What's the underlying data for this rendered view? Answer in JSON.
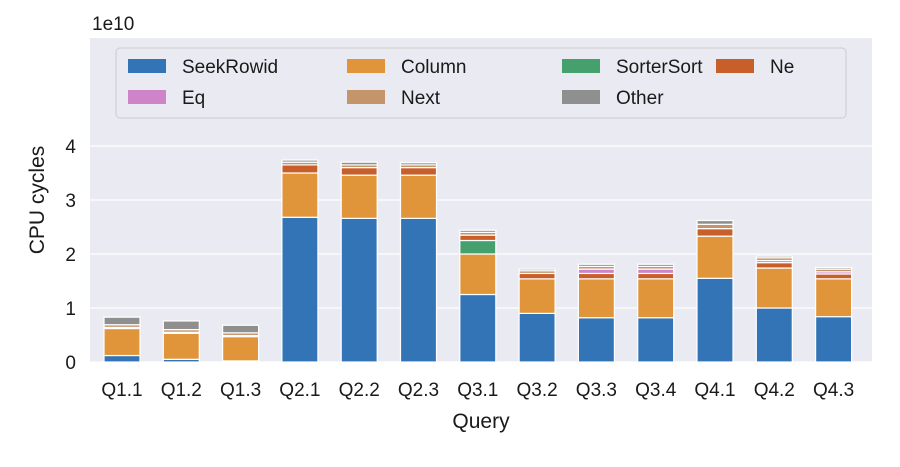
{
  "chart_data": {
    "type": "bar",
    "stacked": true,
    "xlabel": "Query",
    "ylabel": "CPU cycles",
    "y_offset_label": "1e10",
    "ylim": [
      0,
      5.0
    ],
    "yticks": [
      "0",
      "1",
      "2",
      "3",
      "4"
    ],
    "grid": true,
    "legend_position": "top",
    "categories": [
      "Q1.1",
      "Q1.2",
      "Q1.3",
      "Q2.1",
      "Q2.2",
      "Q2.3",
      "Q3.1",
      "Q3.2",
      "Q3.3",
      "Q3.4",
      "Q4.1",
      "Q4.2",
      "Q4.3"
    ],
    "series": [
      {
        "name": "SeekRowid",
        "color": "#3274b5",
        "values": [
          0.12,
          0.05,
          0.02,
          2.68,
          2.66,
          2.66,
          1.25,
          0.9,
          0.82,
          0.82,
          1.55,
          1.0,
          0.84
        ]
      },
      {
        "name": "Column",
        "color": "#e1953a",
        "values": [
          0.5,
          0.48,
          0.45,
          0.82,
          0.8,
          0.8,
          0.75,
          0.64,
          0.72,
          0.72,
          0.78,
          0.74,
          0.7
        ]
      },
      {
        "name": "SorterSort",
        "color": "#45a06d",
        "values": [
          0.0,
          0.0,
          0.0,
          0.0,
          0.0,
          0.0,
          0.25,
          0.0,
          0.0,
          0.0,
          0.0,
          0.0,
          0.0
        ]
      },
      {
        "name": "Ne",
        "color": "#c85f2a",
        "values": [
          0.02,
          0.02,
          0.02,
          0.15,
          0.14,
          0.14,
          0.1,
          0.1,
          0.1,
          0.1,
          0.14,
          0.1,
          0.09
        ]
      },
      {
        "name": "Eq",
        "color": "#cd84c8",
        "values": [
          0.0,
          0.0,
          0.0,
          0.0,
          0.0,
          0.0,
          0.0,
          0.0,
          0.08,
          0.08,
          0.0,
          0.04,
          0.04
        ]
      },
      {
        "name": "Next",
        "color": "#c4946a",
        "values": [
          0.05,
          0.05,
          0.05,
          0.05,
          0.05,
          0.05,
          0.05,
          0.05,
          0.05,
          0.05,
          0.08,
          0.05,
          0.05
        ]
      },
      {
        "name": "Other",
        "color": "#8f8f8f",
        "values": [
          0.14,
          0.16,
          0.14,
          0.04,
          0.05,
          0.04,
          0.04,
          0.03,
          0.04,
          0.04,
          0.07,
          0.03,
          0.03
        ]
      }
    ]
  }
}
